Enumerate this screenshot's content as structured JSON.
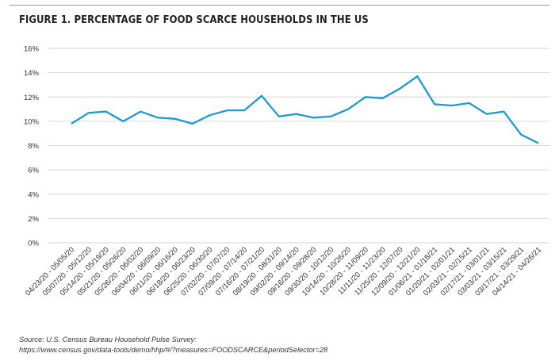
{
  "figure": {
    "title": "FIGURE 1. PERCENTAGE OF FOOD SCARCE HOUSEHOLDS IN THE US",
    "source_line1": "Source: U.S. Census Bureau Household Pulse Survey:",
    "source_line2": "https://www.census.gov/data-tools/demo/hhp/#/?measures=FOODSCARCE&periodSelector=28"
  },
  "chart_data": {
    "type": "line",
    "title": "FIGURE 1. PERCENTAGE OF FOOD SCARCE HOUSEHOLDS IN THE US",
    "xlabel": "",
    "ylabel": "",
    "ylim": [
      0,
      16
    ],
    "yticks": [
      0,
      2,
      4,
      6,
      8,
      10,
      12,
      14,
      16
    ],
    "ytick_labels": [
      "0%",
      "2%",
      "4%",
      "6%",
      "8%",
      "10%",
      "12%",
      "14%",
      "16%"
    ],
    "grid": "horizontal",
    "legend": "none",
    "line_color": "#1c9ad6",
    "gridline_color": "#d6d6d6",
    "categories": [
      "04/23/20 - 05/05/20",
      "05/07/20 - 05/12/20",
      "05/14/20 - 05/19/20",
      "05/21/20 - 05/26/20",
      "05/26/20 - 06/02/20",
      "06/04/20 - 06/09/20",
      "06/11/20 - 06/16/20",
      "06/18/20 - 06/23/20",
      "06/25/20 - 06/30/20",
      "07/02/20 - 07/07/20",
      "07/09/20 - 07/14/20",
      "07/16/20 - 07/21/20",
      "08/19/20 - 08/31/20",
      "09/02/20 - 09/14/20",
      "09/16/20 - 09/28/20",
      "09/30/20 - 10/12/20",
      "10/14/20 - 10/26/20",
      "10/28/20 - 11/09/20",
      "11/11/20 - 11/23/20",
      "11/25/20 - 12/07/20",
      "12/09/20 - 12/21/20",
      "01/06/21 - 01/18/21",
      "01/20/21 - 02/01/21",
      "02/03/21 - 02/15/21",
      "02/17/21 - 03/01/21",
      "03/03/21 - 03/15/21",
      "03/17/21 - 03/29/21",
      "04/14/21 - 04/26/21"
    ],
    "values": [
      9.8,
      10.7,
      10.8,
      10.0,
      10.8,
      10.3,
      10.2,
      9.8,
      10.5,
      10.9,
      10.9,
      12.1,
      10.4,
      10.6,
      10.3,
      10.4,
      11.0,
      12.0,
      11.9,
      12.7,
      13.7,
      11.4,
      11.3,
      11.5,
      10.6,
      10.8,
      8.9,
      8.2
    ]
  }
}
